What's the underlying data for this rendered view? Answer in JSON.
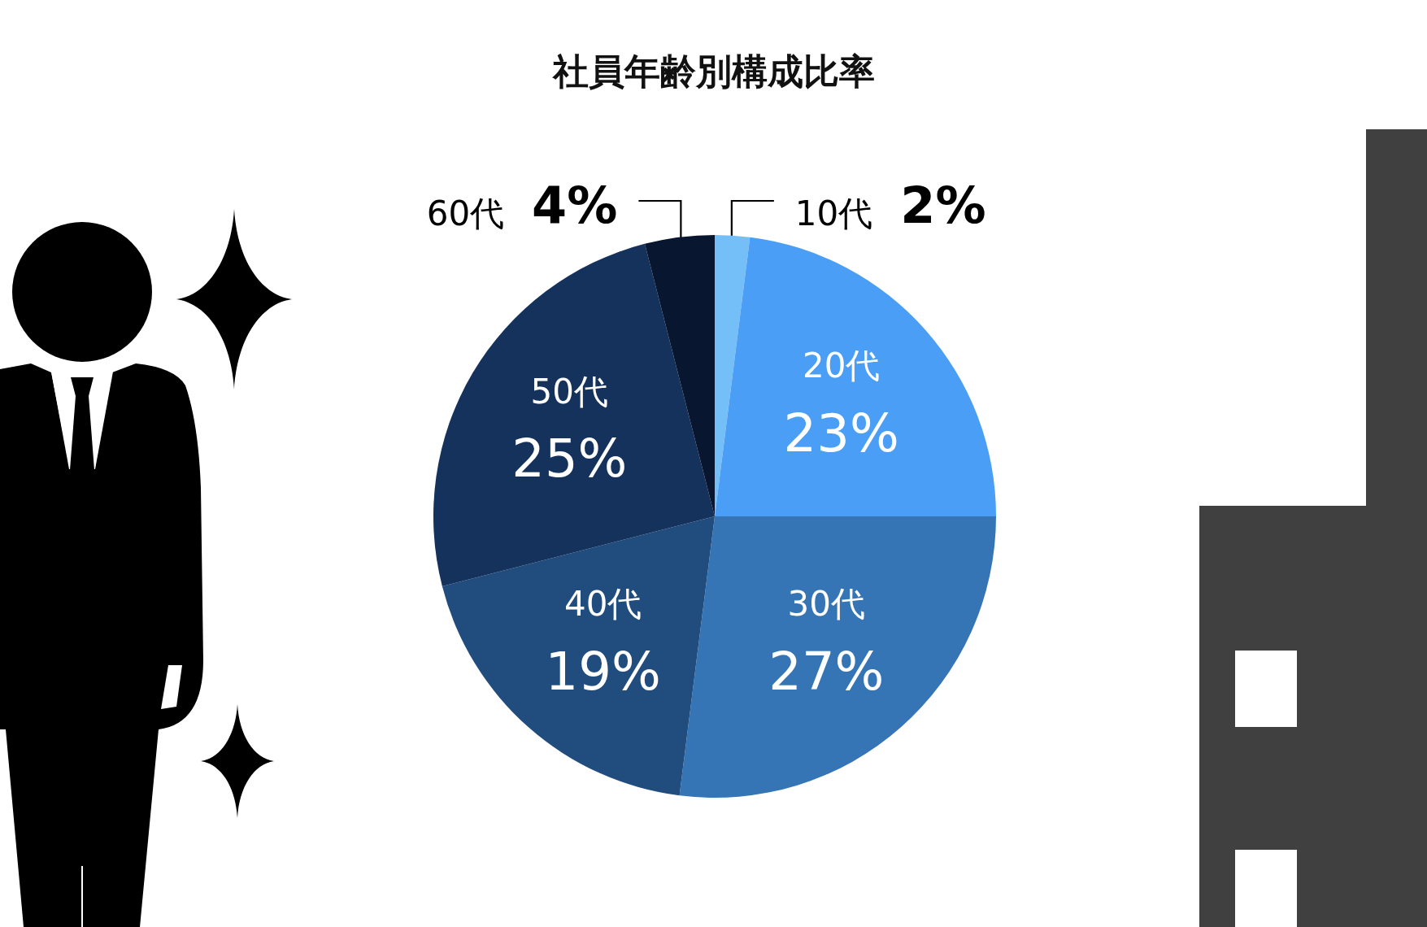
{
  "chart_data": {
    "type": "pie",
    "title": "社員年齢別構成比率",
    "categories": [
      "10代",
      "20代",
      "30代",
      "40代",
      "50代",
      "60代"
    ],
    "values": [
      2,
      23,
      27,
      19,
      25,
      4
    ],
    "colors": [
      "#75bff9",
      "#4a9ef5",
      "#3574b5",
      "#204c7e",
      "#14325c",
      "#08162f"
    ],
    "value_labels": [
      "2%",
      "23%",
      "27%",
      "19%",
      "25%",
      "4%"
    ],
    "legend": false
  }
}
